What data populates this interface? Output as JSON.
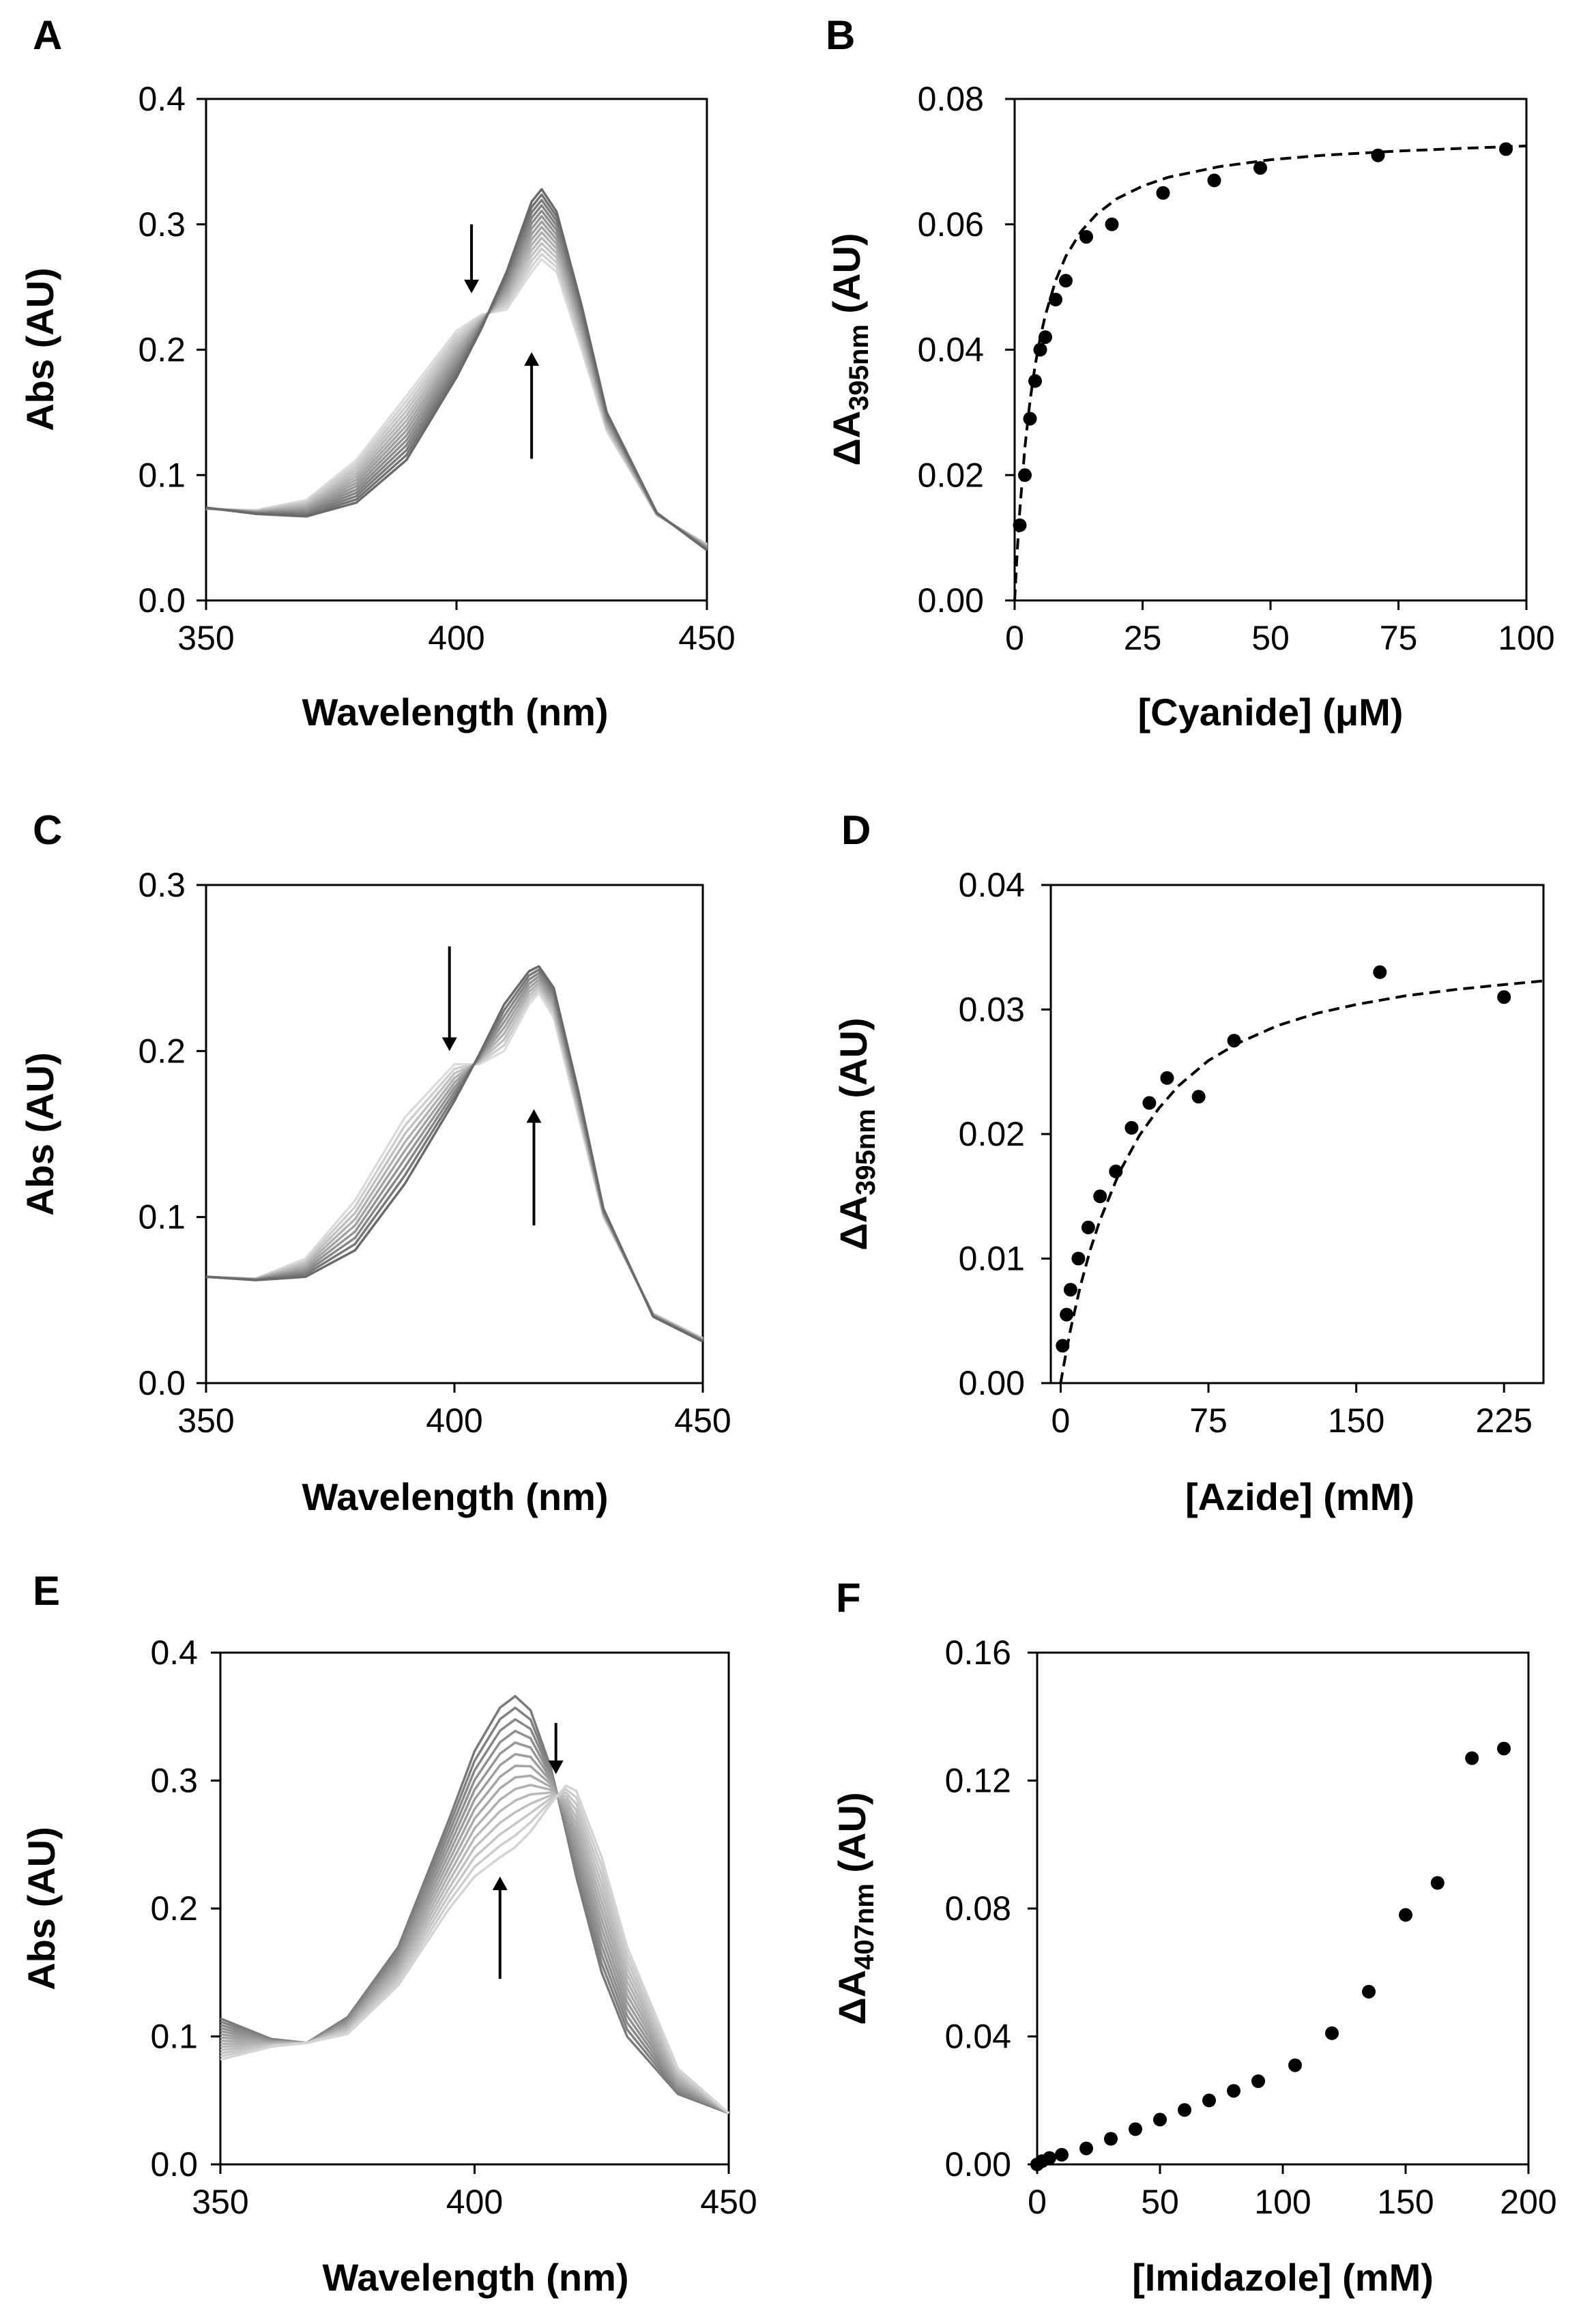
{
  "panel_labels": [
    "A",
    "B",
    "C",
    "D",
    "E",
    "F"
  ],
  "chart_data": [
    {
      "id": "A",
      "type": "line",
      "title": "",
      "xlabel": "Wavelength (nm)",
      "ylabel": "Abs (AU)",
      "xlim": [
        350,
        450
      ],
      "ylim": [
        0,
        0.4
      ],
      "xticks": [
        "350",
        "400",
        "450"
      ],
      "yticks": [
        "0.0",
        "0.1",
        "0.2",
        "0.3",
        "0.4"
      ],
      "spectra": {
        "count": 14,
        "x": [
          350,
          360,
          370,
          380,
          390,
          400,
          405,
          410,
          415,
          417,
          420,
          425,
          430,
          440,
          450
        ],
        "initial": [
          0.073,
          0.072,
          0.08,
          0.112,
          0.163,
          0.215,
          0.228,
          0.232,
          0.262,
          0.272,
          0.262,
          0.2,
          0.135,
          0.068,
          0.045
        ],
        "final": [
          0.074,
          0.069,
          0.067,
          0.078,
          0.112,
          0.178,
          0.217,
          0.262,
          0.318,
          0.328,
          0.31,
          0.235,
          0.15,
          0.07,
          0.04
        ],
        "color_start": "#dcdcdc",
        "color_end": "#6a6a6a"
      },
      "arrows": [
        {
          "direction": "down",
          "x": 403,
          "y_from": 0.3,
          "y_to": 0.245
        },
        {
          "direction": "up",
          "x": 415,
          "y_from": 0.113,
          "y_to": 0.198
        }
      ]
    },
    {
      "id": "B",
      "type": "scatter",
      "title": "",
      "xlabel": "[Cyanide] (μM)",
      "ylabel": "ΔA395nm (AU)",
      "ylabel_parts": {
        "main": "ΔA",
        "sub": "395nm",
        "unit": " (AU)"
      },
      "xlim": [
        0,
        100
      ],
      "ylim": [
        0,
        0.08
      ],
      "xticks": [
        "0",
        "25",
        "50",
        "75",
        "100"
      ],
      "yticks": [
        "0.00",
        "0.02",
        "0.04",
        "0.06",
        "0.08"
      ],
      "series": [
        {
          "name": "data",
          "x": [
            1,
            2,
            3,
            4,
            5,
            6,
            8,
            10,
            14,
            19,
            29,
            39,
            48,
            71,
            96
          ],
          "y": [
            0.012,
            0.02,
            0.029,
            0.035,
            0.04,
            0.042,
            0.048,
            0.051,
            0.058,
            0.06,
            0.065,
            0.067,
            0.069,
            0.071,
            0.072
          ]
        }
      ],
      "fit": {
        "style": "dashed",
        "x": [
          0,
          0.5,
          1,
          2,
          3,
          4,
          5,
          6,
          8,
          10,
          13,
          16,
          20,
          25,
          30,
          40,
          50,
          60,
          75,
          90,
          100
        ],
        "y": [
          0.0,
          0.0078,
          0.0143,
          0.0244,
          0.0318,
          0.0375,
          0.0419,
          0.0455,
          0.051,
          0.0549,
          0.0589,
          0.0616,
          0.0641,
          0.0661,
          0.0675,
          0.0692,
          0.0703,
          0.071,
          0.0717,
          0.0722,
          0.0725
        ]
      }
    },
    {
      "id": "C",
      "type": "line",
      "title": "",
      "xlabel": "Wavelength (nm)",
      "ylabel": "Abs (AU)",
      "xlim": [
        350,
        450
      ],
      "ylim": [
        0,
        0.3
      ],
      "xticks": [
        "350",
        "400",
        "450"
      ],
      "yticks": [
        "0.0",
        "0.1",
        "0.2",
        "0.3"
      ],
      "spectra": {
        "count": 9,
        "x": [
          350,
          360,
          370,
          380,
          390,
          400,
          405,
          410,
          415,
          417,
          420,
          425,
          430,
          440,
          450
        ],
        "initial": [
          0.064,
          0.063,
          0.075,
          0.11,
          0.16,
          0.192,
          0.192,
          0.2,
          0.228,
          0.235,
          0.22,
          0.16,
          0.1,
          0.042,
          0.027
        ],
        "final": [
          0.064,
          0.062,
          0.064,
          0.08,
          0.12,
          0.17,
          0.198,
          0.228,
          0.248,
          0.251,
          0.238,
          0.175,
          0.105,
          0.04,
          0.025
        ],
        "color_start": "#dcdcdc",
        "color_end": "#6a6a6a"
      },
      "arrows": [
        {
          "direction": "down",
          "x": 399,
          "y_from": 0.263,
          "y_to": 0.2
        },
        {
          "direction": "up",
          "x": 416,
          "y_from": 0.095,
          "y_to": 0.165
        }
      ]
    },
    {
      "id": "D",
      "type": "scatter",
      "title": "",
      "xlabel": "[Azide] (mM)",
      "ylabel": "ΔA395nm (AU)",
      "ylabel_parts": {
        "main": "ΔA",
        "sub": "395nm",
        "unit": " (AU)"
      },
      "xlim": [
        -5,
        245
      ],
      "ylim": [
        0,
        0.04
      ],
      "xticks": [
        "0",
        "75",
        "150",
        "225"
      ],
      "yticks": [
        "0.00",
        "0.01",
        "0.02",
        "0.03",
        "0.04"
      ],
      "series": [
        {
          "name": "data",
          "x": [
            1,
            3,
            5,
            9,
            14,
            20,
            28,
            36,
            45,
            54,
            70,
            88,
            162,
            225
          ],
          "y": [
            0.003,
            0.0055,
            0.0075,
            0.01,
            0.0125,
            0.015,
            0.017,
            0.0205,
            0.0225,
            0.0245,
            0.023,
            0.0275,
            0.033,
            0.031
          ]
        }
      ],
      "fit": {
        "style": "dashed",
        "x": [
          0,
          2,
          5,
          10,
          15,
          20,
          30,
          40,
          50,
          60,
          75,
          90,
          110,
          130,
          150,
          175,
          200,
          225,
          245
        ],
        "y": [
          0.0,
          0.0018,
          0.0043,
          0.0078,
          0.0107,
          0.0131,
          0.017,
          0.0199,
          0.0221,
          0.0239,
          0.0259,
          0.0273,
          0.0287,
          0.0297,
          0.0304,
          0.0311,
          0.0316,
          0.032,
          0.0323
        ]
      }
    },
    {
      "id": "E",
      "type": "line",
      "title": "",
      "xlabel": "Wavelength (nm)",
      "ylabel": "Abs (AU)",
      "xlim": [
        350,
        450
      ],
      "ylim": [
        0,
        0.4
      ],
      "xticks": [
        "350",
        "400",
        "450"
      ],
      "yticks": [
        "0.0",
        "0.1",
        "0.2",
        "0.3",
        "0.4"
      ],
      "spectra": {
        "count": 14,
        "x": [
          350,
          360,
          367,
          375,
          385,
          395,
          400,
          405,
          408,
          411,
          415,
          418,
          420,
          425,
          430,
          440,
          450
        ],
        "initial": [
          0.114,
          0.098,
          0.095,
          0.115,
          0.17,
          0.27,
          0.323,
          0.357,
          0.366,
          0.355,
          0.31,
          0.26,
          0.225,
          0.15,
          0.1,
          0.055,
          0.04
        ],
        "final": [
          0.082,
          0.092,
          0.095,
          0.102,
          0.14,
          0.2,
          0.225,
          0.24,
          0.248,
          0.26,
          0.282,
          0.296,
          0.292,
          0.24,
          0.17,
          0.075,
          0.04
        ],
        "color_start": "#7a7a7a",
        "color_end": "#d4d4d4"
      },
      "arrows": [
        {
          "direction": "down",
          "x": 416,
          "y_from": 0.345,
          "y_to": 0.305
        },
        {
          "direction": "up",
          "x": 405,
          "y_from": 0.145,
          "y_to": 0.225
        }
      ]
    },
    {
      "id": "F",
      "type": "scatter",
      "title": "",
      "xlabel": "[Imidazole] (mM)",
      "ylabel": "ΔA407nm (AU)",
      "ylabel_parts": {
        "main": "ΔA",
        "sub": "407nm",
        "unit": " (AU)"
      },
      "xlim": [
        0,
        200
      ],
      "ylim": [
        0,
        0.16
      ],
      "xticks": [
        "0",
        "50",
        "100",
        "150",
        "200"
      ],
      "yticks": [
        "0.00",
        "0.04",
        "0.08",
        "0.12",
        "0.16"
      ],
      "series": [
        {
          "name": "data",
          "x": [
            0,
            2,
            5,
            10,
            20,
            30,
            40,
            50,
            60,
            70,
            80,
            90,
            105,
            120,
            135,
            150,
            163,
            177,
            190
          ],
          "y": [
            0.0,
            0.001,
            0.002,
            0.003,
            0.005,
            0.008,
            0.011,
            0.014,
            0.017,
            0.02,
            0.023,
            0.026,
            0.031,
            0.041,
            0.054,
            0.078,
            0.088,
            0.127,
            0.13
          ]
        }
      ]
    }
  ]
}
